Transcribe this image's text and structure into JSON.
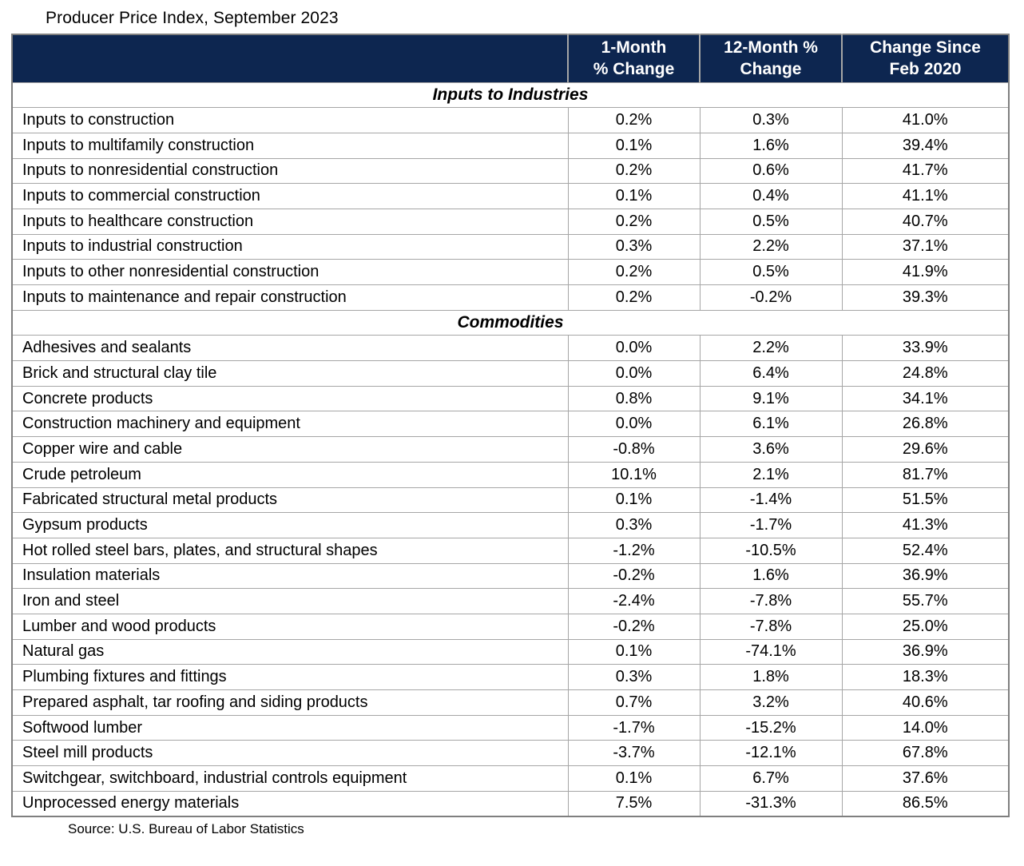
{
  "title": "Producer Price Index, September 2023",
  "source": "Source: U.S. Bureau of Labor Statistics",
  "colors": {
    "header_bg": "#0d2650",
    "header_text": "#ffffff",
    "grid_line": "#a6a6a6",
    "outer_border": "#7f7f7f"
  },
  "header": {
    "col_label": {
      "line1": "",
      "line2": ""
    },
    "col_one_month": {
      "line1": "1-Month",
      "line2": "% Change"
    },
    "col_twelve_month": {
      "line1": "12-Month %",
      "line2": "Change"
    },
    "col_since_feb": {
      "line1": "Change Since",
      "line2": "Feb 2020"
    }
  },
  "sections": [
    {
      "label": "Inputs to Industries",
      "rows": [
        {
          "label": "Inputs to construction",
          "one_month": "0.2%",
          "twelve_month": "0.3%",
          "since_feb_2020": "41.0%"
        },
        {
          "label": "Inputs to multifamily construction",
          "one_month": "0.1%",
          "twelve_month": "1.6%",
          "since_feb_2020": "39.4%"
        },
        {
          "label": "Inputs to nonresidential construction",
          "one_month": "0.2%",
          "twelve_month": "0.6%",
          "since_feb_2020": "41.7%"
        },
        {
          "label": "Inputs to commercial construction",
          "one_month": "0.1%",
          "twelve_month": "0.4%",
          "since_feb_2020": "41.1%"
        },
        {
          "label": "Inputs to healthcare construction",
          "one_month": "0.2%",
          "twelve_month": "0.5%",
          "since_feb_2020": "40.7%"
        },
        {
          "label": "Inputs to industrial construction",
          "one_month": "0.3%",
          "twelve_month": "2.2%",
          "since_feb_2020": "37.1%"
        },
        {
          "label": "Inputs to other nonresidential construction",
          "one_month": "0.2%",
          "twelve_month": "0.5%",
          "since_feb_2020": "41.9%"
        },
        {
          "label": "Inputs to maintenance and repair construction",
          "one_month": "0.2%",
          "twelve_month": "-0.2%",
          "since_feb_2020": "39.3%"
        }
      ]
    },
    {
      "label": "Commodities",
      "rows": [
        {
          "label": "Adhesives and sealants",
          "one_month": "0.0%",
          "twelve_month": "2.2%",
          "since_feb_2020": "33.9%"
        },
        {
          "label": "Brick and structural clay tile",
          "one_month": "0.0%",
          "twelve_month": "6.4%",
          "since_feb_2020": "24.8%"
        },
        {
          "label": "Concrete products",
          "one_month": "0.8%",
          "twelve_month": "9.1%",
          "since_feb_2020": "34.1%"
        },
        {
          "label": "Construction machinery and equipment",
          "one_month": "0.0%",
          "twelve_month": "6.1%",
          "since_feb_2020": "26.8%"
        },
        {
          "label": "Copper wire and cable",
          "one_month": "-0.8%",
          "twelve_month": "3.6%",
          "since_feb_2020": "29.6%"
        },
        {
          "label": "Crude petroleum",
          "one_month": "10.1%",
          "twelve_month": "2.1%",
          "since_feb_2020": "81.7%"
        },
        {
          "label": "Fabricated structural metal products",
          "one_month": "0.1%",
          "twelve_month": "-1.4%",
          "since_feb_2020": "51.5%"
        },
        {
          "label": "Gypsum products",
          "one_month": "0.3%",
          "twelve_month": "-1.7%",
          "since_feb_2020": "41.3%"
        },
        {
          "label": "Hot rolled steel bars, plates, and structural shapes",
          "one_month": "-1.2%",
          "twelve_month": "-10.5%",
          "since_feb_2020": "52.4%"
        },
        {
          "label": "Insulation materials",
          "one_month": "-0.2%",
          "twelve_month": "1.6%",
          "since_feb_2020": "36.9%"
        },
        {
          "label": "Iron and steel",
          "one_month": "-2.4%",
          "twelve_month": "-7.8%",
          "since_feb_2020": "55.7%"
        },
        {
          "label": "Lumber and wood products",
          "one_month": "-0.2%",
          "twelve_month": "-7.8%",
          "since_feb_2020": "25.0%"
        },
        {
          "label": "Natural gas",
          "one_month": "0.1%",
          "twelve_month": "-74.1%",
          "since_feb_2020": "36.9%"
        },
        {
          "label": "Plumbing fixtures and fittings",
          "one_month": "0.3%",
          "twelve_month": "1.8%",
          "since_feb_2020": "18.3%"
        },
        {
          "label": "Prepared asphalt, tar roofing and siding products",
          "one_month": "0.7%",
          "twelve_month": "3.2%",
          "since_feb_2020": "40.6%"
        },
        {
          "label": "Softwood lumber",
          "one_month": "-1.7%",
          "twelve_month": "-15.2%",
          "since_feb_2020": "14.0%"
        },
        {
          "label": "Steel mill products",
          "one_month": "-3.7%",
          "twelve_month": "-12.1%",
          "since_feb_2020": "67.8%"
        },
        {
          "label": "Switchgear, switchboard, industrial controls equipment",
          "one_month": "0.1%",
          "twelve_month": "6.7%",
          "since_feb_2020": "37.6%"
        },
        {
          "label": "Unprocessed energy materials",
          "one_month": "7.5%",
          "twelve_month": "-31.3%",
          "since_feb_2020": "86.5%"
        }
      ]
    }
  ]
}
